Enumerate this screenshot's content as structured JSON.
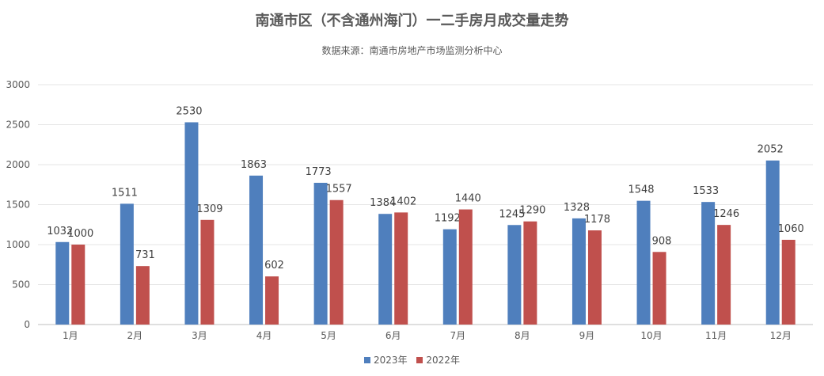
{
  "chart_data": {
    "type": "bar",
    "title": "南通市区（不含通州海门）一二手房月成交量走势",
    "subtitle": "数据来源：南通市房地产市场监测分析中心",
    "categories": [
      "1月",
      "2月",
      "3月",
      "4月",
      "5月",
      "6月",
      "7月",
      "8月",
      "9月",
      "10月",
      "11月",
      "12月"
    ],
    "series": [
      {
        "name": "2023年",
        "color": "#4f7fbd",
        "values": [
          1032,
          1511,
          2530,
          1863,
          1773,
          1384,
          1192,
          1245,
          1328,
          1548,
          1533,
          2052
        ]
      },
      {
        "name": "2022年",
        "color": "#c0504d",
        "values": [
          1000,
          731,
          1309,
          602,
          1557,
          1402,
          1440,
          1290,
          1178,
          908,
          1246,
          1060
        ]
      }
    ],
    "yticks": [
      "0",
      "500",
      "1000",
      "1500",
      "2000",
      "2500",
      "3000"
    ],
    "ylim": [
      0,
      3000
    ],
    "grid": true,
    "legend_position": "bottom"
  }
}
